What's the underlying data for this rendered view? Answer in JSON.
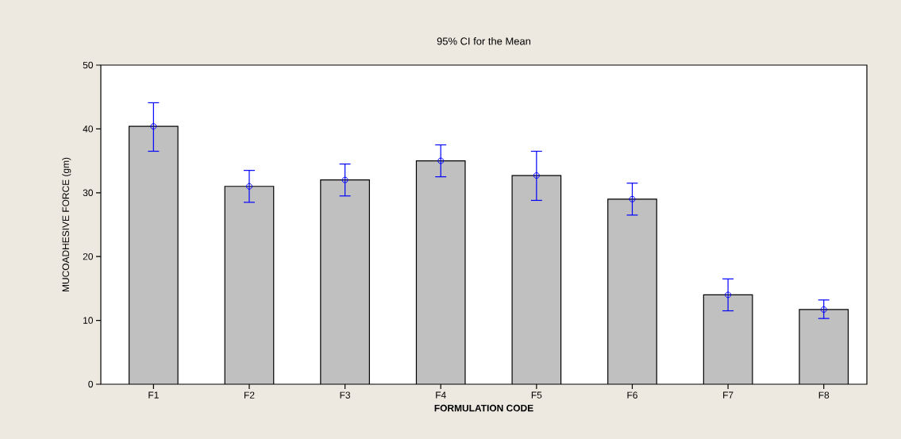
{
  "chart_data": {
    "type": "bar",
    "title": "95% CI for the Mean",
    "xlabel": "FORMULATION CODE",
    "ylabel": "MUCOADHESIVE FORCE (gm)",
    "categories": [
      "F1",
      "F2",
      "F3",
      "F4",
      "F5",
      "F6",
      "F7",
      "F8"
    ],
    "series": [
      {
        "color": "#c0c0c0",
        "values": [
          40.4,
          31.0,
          32.0,
          35.0,
          32.7,
          29.0,
          14.0,
          11.7
        ]
      },
      {
        "type": "scatter",
        "color": "#0000ff",
        "marker": "circle",
        "x": [
          "F1",
          "F2",
          "F3",
          "F4",
          "F5",
          "F6",
          "F7",
          "F8"
        ],
        "values": [
          40.4,
          31.0,
          32.0,
          35.0,
          32.7,
          29.0,
          14.0,
          11.7
        ],
        "errors": [
          [
            36.5,
            44.1
          ],
          [
            28.5,
            33.5
          ],
          [
            29.5,
            34.5
          ],
          [
            32.5,
            37.5
          ],
          [
            28.8,
            36.5
          ],
          [
            26.5,
            31.5
          ],
          [
            11.5,
            16.5
          ],
          [
            10.3,
            13.2
          ]
        ]
      }
    ],
    "ylim": [
      0,
      50
    ],
    "yticks": [
      0,
      10,
      20,
      30,
      40,
      50
    ],
    "grid": false
  }
}
